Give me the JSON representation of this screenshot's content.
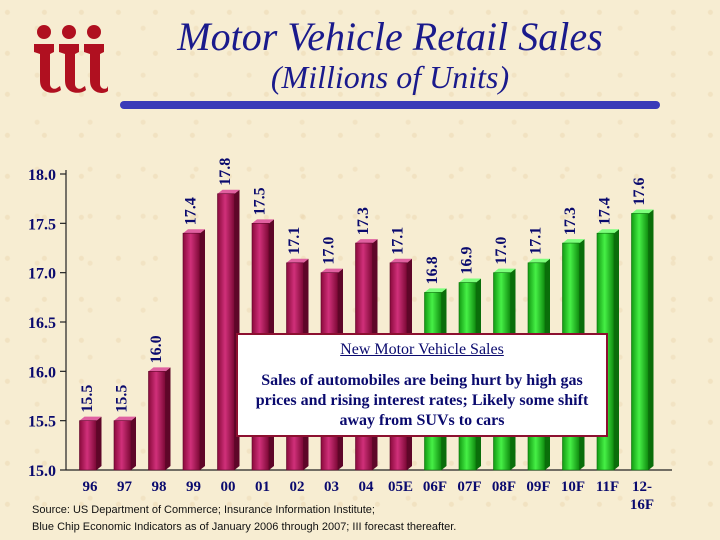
{
  "title": "Motor Vehicle Retail Sales",
  "subtitle": "(Millions of Units)",
  "logo": {
    "icon": "iii-logo",
    "color": "#b01020"
  },
  "note": {
    "title": "New Motor Vehicle Sales",
    "body": "Sales of automobiles are being hurt by high gas prices and rising interest rates; Likely some shift away from SUVs to cars"
  },
  "source": {
    "line1": "Source: US Department of Commerce; Insurance Information Institute;",
    "line2": "Blue Chip Economic Indicators as of January 2006 through 2007; III forecast thereafter."
  },
  "chart_data": {
    "type": "bar",
    "categories": [
      "96",
      "97",
      "98",
      "99",
      "00",
      "01",
      "02",
      "03",
      "04",
      "05E",
      "06F",
      "07F",
      "08F",
      "09F",
      "10F",
      "11F",
      "12-16F"
    ],
    "values": [
      15.5,
      15.5,
      16.0,
      17.4,
      17.8,
      17.5,
      17.1,
      17.0,
      17.3,
      17.1,
      16.8,
      16.9,
      17.0,
      17.1,
      17.3,
      17.4,
      17.6
    ],
    "value_labels": [
      "15.5",
      "15.5",
      "16.0",
      "17.4",
      "17.8",
      "17.5",
      "17.1",
      "17.0",
      "17.3",
      "17.1",
      "16.8",
      "16.9",
      "17.0",
      "17.1",
      "17.3",
      "17.4",
      "17.6"
    ],
    "series_colors": {
      "actual": "#b0185a",
      "forecast": "#28c828"
    },
    "forecast_start_index": 10,
    "yticks": [
      "15.0",
      "15.5",
      "16.0",
      "16.5",
      "17.0",
      "17.5",
      "18.0"
    ],
    "ylim": [
      15.0,
      18.0
    ],
    "grid": false,
    "xlabel": "",
    "ylabel": ""
  }
}
